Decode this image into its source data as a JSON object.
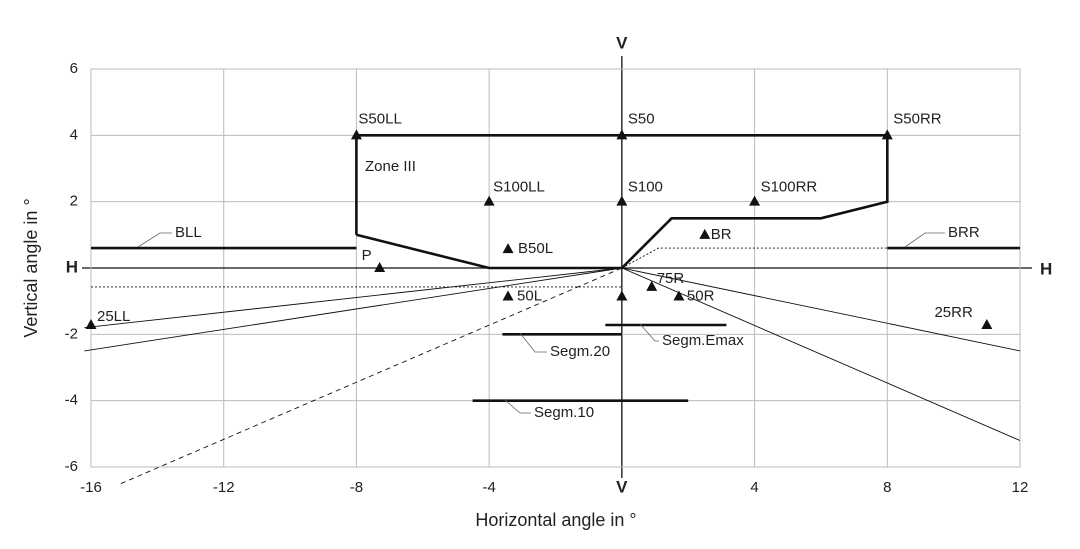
{
  "chart_data": {
    "type": "scatter",
    "xlabel": "Horizontal angle in °",
    "ylabel": "Vertical angle in °",
    "xlim": [
      -16,
      12
    ],
    "ylim": [
      -6,
      6
    ],
    "xticks": [
      -16,
      -12,
      -8,
      -4,
      {
        "value": 0,
        "label": "V"
      },
      4,
      8,
      12
    ],
    "yticks": [
      -6,
      -4,
      -2,
      {
        "value": 0,
        "label": "H"
      },
      2,
      4,
      6
    ],
    "grid": true,
    "annotations": [
      "Zone III"
    ],
    "points": [
      {
        "label": "S50LL",
        "x": -8,
        "y": 4
      },
      {
        "label": "S50",
        "x": 0,
        "y": 4
      },
      {
        "label": "S50RR",
        "x": 8,
        "y": 4
      },
      {
        "label": "S100LL",
        "x": -4,
        "y": 2
      },
      {
        "label": "S100",
        "x": 0,
        "y": 2
      },
      {
        "label": "S100RR",
        "x": 4,
        "y": 2
      },
      {
        "label": "BR",
        "x": 2.5,
        "y": 1
      },
      {
        "label": "B50L",
        "x": -3.43,
        "y": 0.57
      },
      {
        "label": "P",
        "x": -7.3,
        "y": 0
      },
      {
        "label": "50L",
        "x": -3.43,
        "y": -0.86
      },
      {
        "label": "75R",
        "x": 0.9,
        "y": -0.57
      },
      {
        "label": "50R",
        "x": 1.72,
        "y": -0.86
      },
      {
        "label": "25LL",
        "x": -16,
        "y": -1.72
      },
      {
        "label": "25RR",
        "x": 11,
        "y": -1.72
      },
      {
        "label": null,
        "x": 0,
        "y": -0.86
      }
    ],
    "lines": [
      {
        "label": "BLL",
        "style": "solid",
        "weight": "bold",
        "x": [
          -16,
          -8
        ],
        "y": [
          0.6,
          0.6
        ]
      },
      {
        "label": "BRR",
        "style": "solid",
        "weight": "bold",
        "x": [
          8,
          12
        ],
        "y": [
          0.6,
          0.6
        ]
      },
      {
        "style": "solid",
        "weight": "bold",
        "x": [
          -8,
          -8,
          8,
          8,
          6,
          1.5,
          0,
          -4,
          -8
        ],
        "y": [
          1,
          4,
          4,
          2,
          1.5,
          1.5,
          0,
          0,
          1
        ]
      },
      {
        "label": "Segm.20",
        "style": "solid",
        "weight": "bold",
        "x": [
          -3.6,
          0
        ],
        "y": [
          -2,
          -2
        ]
      },
      {
        "label": "Segm.Emax",
        "style": "solid",
        "weight": "bold",
        "x": [
          -0.5,
          3.15
        ],
        "y": [
          -1.72,
          -1.72
        ]
      },
      {
        "label": "Segm.10",
        "style": "solid",
        "weight": "bold",
        "x": [
          -4.5,
          2
        ],
        "y": [
          -4,
          -4
        ]
      },
      {
        "style": "dotted",
        "weight": "thin",
        "x": [
          0,
          1.1,
          8
        ],
        "y": [
          0,
          0.6,
          0.6
        ]
      },
      {
        "style": "dotted",
        "weight": "thin",
        "x": [
          -16,
          0
        ],
        "y": [
          -0.57,
          -0.57
        ]
      },
      {
        "style": "dashed",
        "weight": "thin",
        "x": [
          -15.1,
          0
        ],
        "y": [
          -6.5,
          0
        ]
      },
      {
        "style": "solid",
        "weight": "thin",
        "x": [
          -16.2,
          0
        ],
        "y": [
          -1.8,
          0
        ]
      },
      {
        "style": "solid",
        "weight": "thin",
        "x": [
          -16.2,
          0
        ],
        "y": [
          -2.5,
          0
        ]
      },
      {
        "style": "solid",
        "weight": "thin",
        "x": [
          0,
          12
        ],
        "y": [
          0,
          -2.5
        ]
      },
      {
        "style": "solid",
        "weight": "thin",
        "x": [
          0,
          12
        ],
        "y": [
          0,
          -5.2
        ]
      }
    ]
  }
}
